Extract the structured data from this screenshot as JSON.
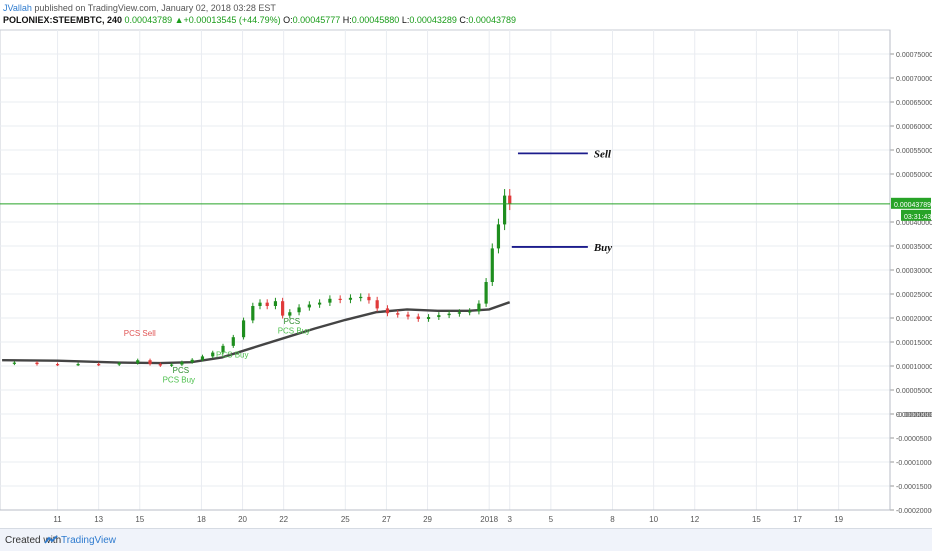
{
  "header": {
    "author": "JVallah",
    "published_text": " published on TradingView.com, January 02, 2018 03:28 EST",
    "symbol": "POLONIEX:STEEMBTC, 240",
    "last": "0.00043789",
    "change_arrow": "▲",
    "change": "+0.00013545 (+44.79%)",
    "open_label": "O:",
    "open": "0.00045777",
    "high_label": "H:",
    "high": "0.00045880",
    "low_label": "L:",
    "low": "0.00043289",
    "close_label": "C:",
    "close": "0.00043789"
  },
  "footer": {
    "created_with": "Created with",
    "brand": "TradingView"
  },
  "colors": {
    "up": "#1e8e1e",
    "down": "#e03a3a",
    "ma": "#444444",
    "price_line": "#27a327",
    "annotation_line": "#1c1c8c",
    "grid": "#e9ecf1",
    "axis_text": "#555555",
    "pcs_sell": "#e05555",
    "pcs_buy": "#4dc04d"
  },
  "chart_data": {
    "type": "candlestick",
    "symbol": "POLONIEX:STEEMBTC",
    "interval": "240",
    "ylim": [
      -0.0002,
      0.0008
    ],
    "y_ticks": [
      "0.00075000",
      "0.00070000",
      "0.00065000",
      "0.00060000",
      "0.00055000",
      "0.00050000",
      "0.00040000",
      "0.00035000",
      "0.00030000",
      "0.00025000",
      "0.00020000",
      "0.00015000",
      "0.00010000",
      "0.00005000",
      "0.00000000",
      "-0.00000000",
      "-0.00005000",
      "-0.00010000",
      "-0.00015000",
      "-0.00020000"
    ],
    "y_tick_values": [
      0.00075,
      0.0007,
      0.00065,
      0.0006,
      0.00055,
      0.0005,
      0.0004,
      0.00035,
      0.0003,
      0.00025,
      0.0002,
      0.00015,
      0.0001,
      5e-05,
      0.0,
      -0.0,
      -5e-05,
      -0.0001,
      -0.00015,
      -0.0002
    ],
    "x_ticks": [
      "11",
      "13",
      "15",
      "18",
      "20",
      "22",
      "25",
      "27",
      "29",
      "2018",
      "3",
      "5",
      "8",
      "10",
      "12",
      "15",
      "17",
      "19"
    ],
    "x_tick_days": [
      11,
      13,
      15,
      18,
      20,
      22,
      25,
      27,
      29,
      32,
      33,
      35,
      38,
      40,
      42,
      45,
      47,
      49
    ],
    "x_day_range": [
      8.2,
      51.5
    ],
    "current_price": 0.00043789,
    "current_price_label": "0.00043789",
    "countdown_label": "03:31:43",
    "price_points": [
      [
        8.3,
        0.000105
      ],
      [
        9.5,
        0.000107
      ],
      [
        10.5,
        0.000104
      ],
      [
        11.5,
        0.000103
      ],
      [
        12.5,
        0.000104
      ],
      [
        13.5,
        0.000103
      ],
      [
        14.5,
        0.000106
      ],
      [
        15.3,
        0.000112
      ],
      [
        15.7,
        0.000104
      ],
      [
        16.3,
        0.000101
      ],
      [
        16.8,
        0.000103
      ],
      [
        17.3,
        0.000108
      ],
      [
        17.8,
        0.000113
      ],
      [
        18.3,
        0.00012
      ],
      [
        18.8,
        0.000128
      ],
      [
        19.3,
        0.000142
      ],
      [
        19.8,
        0.00016
      ],
      [
        20.3,
        0.000195
      ],
      [
        20.7,
        0.000225
      ],
      [
        21.0,
        0.000232
      ],
      [
        21.4,
        0.000225
      ],
      [
        21.8,
        0.000235
      ],
      [
        22.1,
        0.000205
      ],
      [
        22.5,
        0.000212
      ],
      [
        23.0,
        0.000222
      ],
      [
        23.5,
        0.000228
      ],
      [
        24.0,
        0.000232
      ],
      [
        24.5,
        0.00024
      ],
      [
        25.0,
        0.000238
      ],
      [
        25.5,
        0.000242
      ],
      [
        26.0,
        0.000244
      ],
      [
        26.3,
        0.000237
      ],
      [
        26.8,
        0.00022
      ],
      [
        27.3,
        0.00021
      ],
      [
        27.8,
        0.000207
      ],
      [
        28.3,
        0.000203
      ],
      [
        28.8,
        0.000198
      ],
      [
        29.3,
        0.000202
      ],
      [
        29.8,
        0.000206
      ],
      [
        30.3,
        0.000209
      ],
      [
        30.8,
        0.000212
      ],
      [
        31.3,
        0.000214
      ],
      [
        31.7,
        0.00023
      ],
      [
        32.0,
        0.000275
      ],
      [
        32.3,
        0.000345
      ],
      [
        32.6,
        0.000395
      ],
      [
        32.9,
        0.000455
      ],
      [
        33.1,
        0.000438
      ]
    ],
    "series": [
      {
        "name": "STEEMBTC",
        "type": "candlestick"
      },
      {
        "name": "",
        "type": "line"
      }
    ],
    "ma_points": [
      [
        8.3,
        0.000112
      ],
      [
        11,
        0.000111
      ],
      [
        14,
        0.000107
      ],
      [
        16,
        0.000106
      ],
      [
        17.5,
        0.000108
      ],
      [
        19,
        0.000118
      ],
      [
        20.5,
        0.000138
      ],
      [
        22,
        0.000158
      ],
      [
        23.5,
        0.000178
      ],
      [
        25,
        0.000196
      ],
      [
        26.5,
        0.000212
      ],
      [
        28,
        0.000218
      ],
      [
        29.5,
        0.000215
      ],
      [
        31,
        0.000215
      ],
      [
        32,
        0.000218
      ],
      [
        33,
        0.000233
      ]
    ],
    "annotations": [
      {
        "text": "Sell",
        "price": 0.000543,
        "day_from": 33.4,
        "day_to": 36.8
      },
      {
        "text": "Buy",
        "price": 0.000348,
        "day_from": 33.1,
        "day_to": 36.8
      }
    ],
    "signals": [
      {
        "text": "PCS Sell",
        "day": 15.0,
        "price": 0.000162,
        "kind": "sell"
      },
      {
        "text": "PCS",
        "day": 17.0,
        "price": 8.5e-05,
        "kind": "buy"
      },
      {
        "text": "PCS Buy",
        "day": 16.9,
        "price": 6.6e-05,
        "kind": "buy"
      },
      {
        "text": "PCS Buy",
        "day": 19.5,
        "price": 0.000118,
        "kind": "buy"
      },
      {
        "text": "PCS",
        "day": 22.4,
        "price": 0.000188,
        "kind": "buy"
      },
      {
        "text": "PCS Buy",
        "day": 22.5,
        "price": 0.000168,
        "kind": "buy"
      }
    ]
  }
}
